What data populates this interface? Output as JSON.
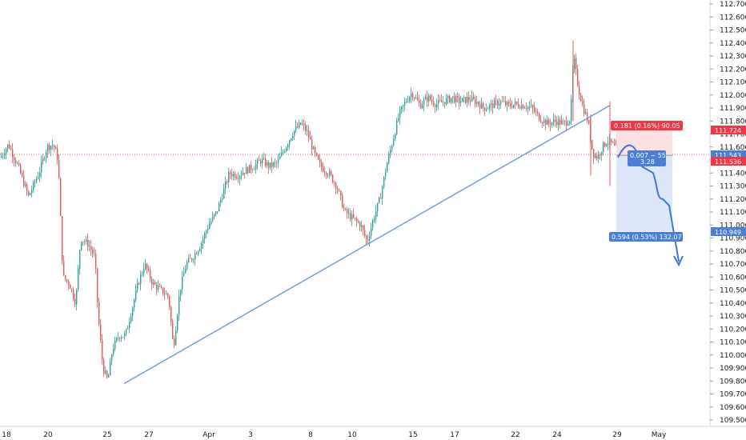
{
  "chart_data": {
    "type": "candlestick",
    "instrument_title": "",
    "y_axis": {
      "ticks": [
        "112.700",
        "112.600",
        "112.500",
        "112.400",
        "112.300",
        "112.200",
        "112.100",
        "112.000",
        "111.900",
        "111.800",
        "111.700",
        "111.600",
        "111.500",
        "111.400",
        "111.300",
        "111.200",
        "111.100",
        "111.000",
        "110.900",
        "110.800",
        "110.700",
        "110.600",
        "110.500",
        "110.400",
        "110.300",
        "110.200",
        "110.100",
        "110.000",
        "109.900",
        "109.800",
        "109.700",
        "109.600",
        "109.500"
      ],
      "ylim": [
        109.45,
        112.75
      ]
    },
    "x_axis": {
      "labels": [
        "18",
        "20",
        "25",
        "27",
        "Apr",
        "3",
        "8",
        "10",
        "15",
        "17",
        "22",
        "24",
        "29",
        "May"
      ]
    },
    "price_tags": {
      "stop_price": "111.724",
      "current_price": "111.543",
      "entry_price": "111.536",
      "target_price": "110.949"
    },
    "position_tool": {
      "stop_label": "0.181 (0.16%) 90.05",
      "mid_label_line1": "0.007 ~ 55",
      "mid_label_line2": "3.28",
      "target_label": "0.594 (0.53%) 132.07"
    },
    "annotations": {
      "trendline": {
        "from": [
          109.78
        ],
        "to": [
          111.92
        ]
      },
      "projection_arrow": "down"
    },
    "colors": {
      "bull": "#26a69a",
      "bear": "#ef5350",
      "trendline": "#6a9bd8",
      "stop_zone": "#fcdcdc",
      "target_zone": "#d6e4f6",
      "stop_tag": "#f23645",
      "target_tag": "#4a7fd4",
      "arrow": "#3b78d8"
    },
    "grid": false
  }
}
